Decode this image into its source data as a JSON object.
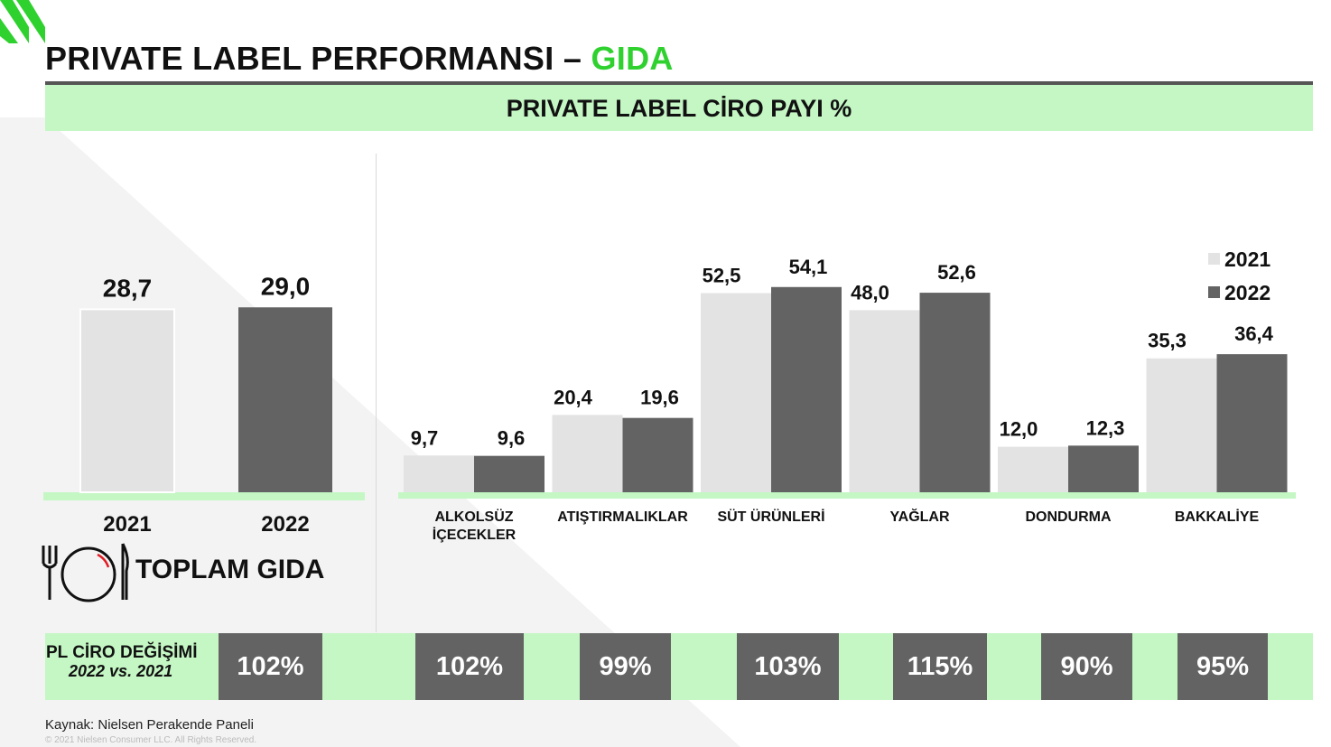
{
  "title": {
    "main": "PRIVATE LABEL PERFORMANSI –",
    "accent": "GIDA"
  },
  "subtitle": "PRIVATE LABEL CİRO PAYI %",
  "total": {
    "label": "TOPLAM GIDA",
    "icon": "plate-fork-knife-icon"
  },
  "change": {
    "label_line1": "PL CİRO DEĞİŞİMİ",
    "label_line2": "2022 vs. 2021",
    "values": [
      "102%",
      "102%",
      "99%",
      "103%",
      "115%",
      "90%",
      "95%"
    ]
  },
  "source": "Kaynak: Nielsen Perakende Paneli",
  "copyright": "© 2021 Nielsen Consumer LLC. All Rights Reserved.",
  "colors": {
    "y2021": "#e3e3e3",
    "y2022": "#636363",
    "accent": "#2fd12f",
    "band": "#c4f7c4"
  },
  "chart_data": [
    {
      "type": "bar",
      "categories": [
        "2021",
        "2022"
      ],
      "values": [
        28.7,
        29.0
      ],
      "value_labels": [
        "28,7",
        "29,0"
      ]
    },
    {
      "type": "bar",
      "categories": [
        "ALKOLSÜZ İÇECEKLER",
        "ATIŞTIRMALIKLAR",
        "SÜT ÜRÜNLERİ",
        "YAĞLAR",
        "DONDURMA",
        "BAKKALİYE"
      ],
      "category_lines": [
        [
          "ALKOLSÜZ",
          "İÇECEKLER"
        ],
        [
          "ATIŞTIRMALIKLAR"
        ],
        [
          "SÜT ÜRÜNLERİ"
        ],
        [
          "YAĞLAR"
        ],
        [
          "DONDURMA"
        ],
        [
          "BAKKALİYE"
        ]
      ],
      "series": [
        {
          "name": "2021",
          "values": [
            9.7,
            20.4,
            52.5,
            48.0,
            12.0,
            35.3
          ],
          "labels": [
            "9,7",
            "20,4",
            "52,5",
            "48,0",
            "12,0",
            "35,3"
          ]
        },
        {
          "name": "2022",
          "values": [
            9.6,
            19.6,
            54.1,
            52.6,
            12.3,
            36.4
          ],
          "labels": [
            "9,6",
            "19,6",
            "54,1",
            "52,6",
            "12,3",
            "36,4"
          ]
        }
      ],
      "legend": "top-right",
      "ylim": [
        0,
        60
      ]
    }
  ]
}
